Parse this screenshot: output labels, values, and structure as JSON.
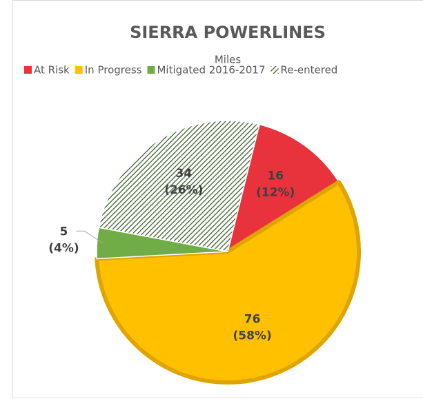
{
  "chart_data": {
    "type": "pie",
    "title": "SIERRA POWERLINES",
    "subtitle": "Miles",
    "categories": [
      "At Risk",
      "In Progress",
      "Mitigated 2016-2017",
      "Re-entered"
    ],
    "values": [
      16,
      76,
      5,
      34
    ],
    "percent_labels": [
      "(12%)",
      "(58%)",
      "(4%)",
      "(26%)"
    ],
    "colors": [
      "#e8323c",
      "#ffc000",
      "#70ad47",
      "hatch"
    ],
    "legend": "top"
  }
}
